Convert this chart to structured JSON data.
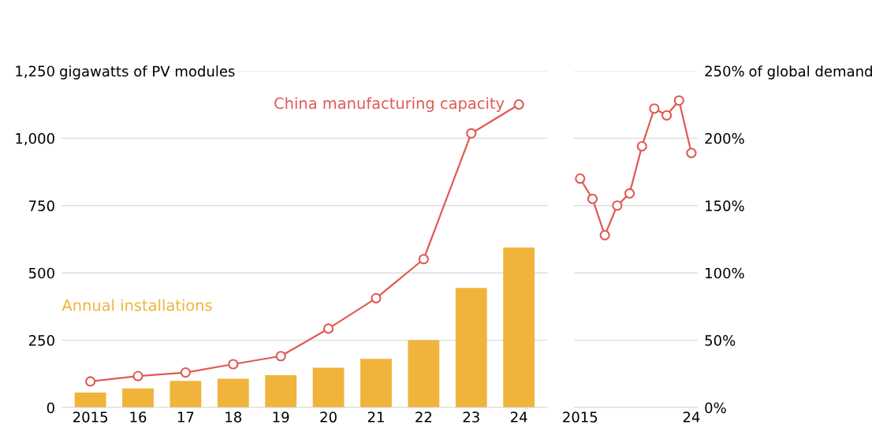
{
  "chart_data": [
    {
      "type": "bar",
      "categories": [
        "2015",
        "16",
        "17",
        "18",
        "19",
        "20",
        "21",
        "22",
        "23",
        "24"
      ],
      "series": [
        {
          "name": "Annual installations",
          "type": "bar",
          "color": "#f0b43c",
          "values": [
            56,
            71,
            99,
            107,
            120,
            148,
            181,
            250,
            444,
            594
          ]
        },
        {
          "name": "China manufacturing capacity",
          "type": "line",
          "color": "#e05a55",
          "values": [
            97,
            117,
            130,
            161,
            191,
            293,
            406,
            551,
            1018,
            1125
          ]
        }
      ],
      "ylim": [
        0,
        1250
      ],
      "yticks": [
        0,
        250,
        500,
        750,
        {
          "value": 1000,
          "label": "1,000"
        },
        {
          "value": 1250,
          "label": "1,250"
        }
      ],
      "ylabel": "gigawatts of PV modules",
      "grid": "y",
      "marker": "circle",
      "legend": false
    },
    {
      "type": "line",
      "x": [
        2015,
        2016,
        2017,
        2018,
        2019,
        2020,
        2021,
        2022,
        2023,
        2024
      ],
      "series": [
        {
          "color": "#e05a55",
          "values": [
            170,
            155,
            128,
            150,
            159,
            194,
            222,
            217,
            228,
            189
          ]
        }
      ],
      "xlim": [
        2014.5,
        2024.5
      ],
      "xticks": [
        {
          "value": 2015,
          "label": "2015"
        },
        {
          "value": 2024,
          "label": "24"
        }
      ],
      "ylim": [
        0,
        250
      ],
      "yticks": [
        {
          "value": 0,
          "label": "0%"
        },
        {
          "value": 50,
          "label": "50%"
        },
        {
          "value": 100,
          "label": "100%"
        },
        {
          "value": 150,
          "label": "150%"
        },
        {
          "value": 200,
          "label": "200%"
        },
        {
          "value": 250,
          "label": "250%"
        }
      ],
      "ylabel": "of global demand",
      "grid": "y",
      "marker": "circle",
      "legend": false
    }
  ]
}
